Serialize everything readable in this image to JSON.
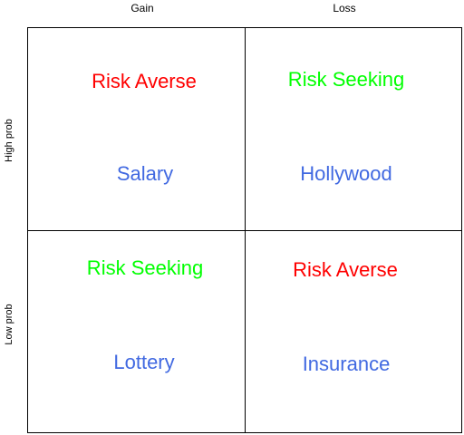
{
  "columns": [
    "Gain",
    "Loss"
  ],
  "rows": [
    "High prob",
    "Low prob"
  ],
  "colors": {
    "averse": "#ff0000",
    "seeking": "#00ff00",
    "example": "#4169e1"
  },
  "cells": [
    {
      "attitude": "Risk Averse",
      "example": "Salary"
    },
    {
      "attitude": "Risk Seeking",
      "example": "Hollywood"
    },
    {
      "attitude": "Risk Seeking",
      "example": "Lottery"
    },
    {
      "attitude": "Risk Averse",
      "example": "Insurance"
    }
  ]
}
